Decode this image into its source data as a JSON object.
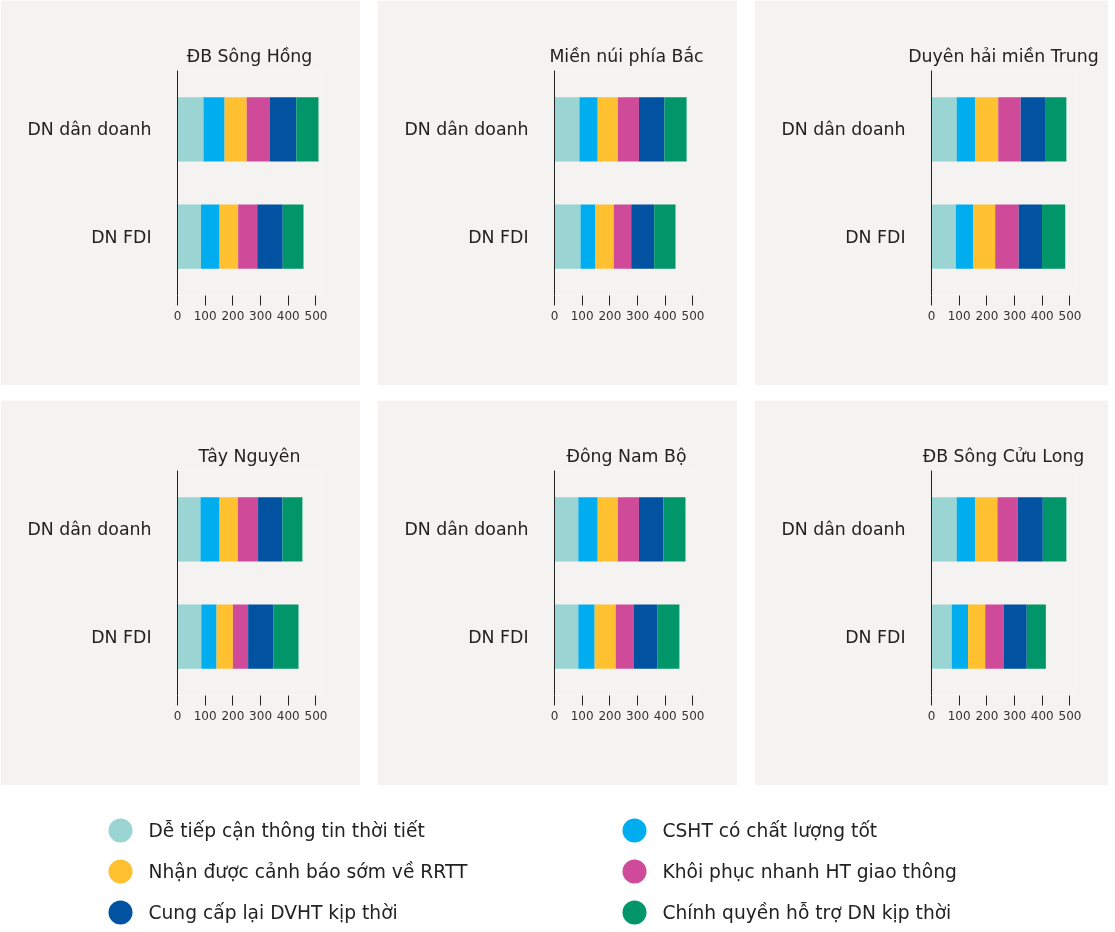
{
  "chart_data": [
    {
      "type": "bar",
      "orientation": "horizontal",
      "stacked": true,
      "title": "ĐB Sông Hồng",
      "categories": [
        "DN dân doanh",
        "DN FDI"
      ],
      "xlim": [
        0,
        520
      ],
      "xticks": [
        0,
        100,
        200,
        300,
        400,
        500
      ],
      "legend": "bottom",
      "series": [
        {
          "name": "Dễ tiếp cận thông tin thời tiết",
          "color": "#9ad5d4",
          "values": [
            94,
            85
          ]
        },
        {
          "name": "CSHT có chất lượng tốt",
          "color": "#00adef",
          "values": [
            76,
            67
          ]
        },
        {
          "name": "Nhận được cảnh báo sớm về RRTT",
          "color": "#ffc12f",
          "values": [
            80,
            67
          ]
        },
        {
          "name": "Khôi phục nhanh HT giao thông",
          "color": "#cf4b99",
          "values": [
            84,
            69
          ]
        },
        {
          "name": "Cung cấp lại DVHT kịp thời",
          "color": "#0152a1",
          "values": [
            95,
            92
          ]
        },
        {
          "name": "Chính quyền hỗ trợ DN kịp thời",
          "color": "#009669",
          "values": [
            80,
            75
          ]
        }
      ]
    },
    {
      "type": "bar",
      "orientation": "horizontal",
      "stacked": true,
      "title": "Miền núi phía Bắc",
      "categories": [
        "DN dân doanh",
        "DN FDI"
      ],
      "xlim": [
        0,
        520
      ],
      "xticks": [
        0,
        100,
        200,
        300,
        400,
        500
      ],
      "series": [
        {
          "color": "#9ad5d4",
          "values": [
            90,
            94
          ]
        },
        {
          "color": "#00adef",
          "values": [
            66,
            54
          ]
        },
        {
          "color": "#ffc12f",
          "values": [
            73,
            66
          ]
        },
        {
          "color": "#cf4b99",
          "values": [
            76,
            63
          ]
        },
        {
          "color": "#0152a1",
          "values": [
            92,
            83
          ]
        },
        {
          "color": "#009669",
          "values": [
            80,
            77
          ]
        }
      ]
    },
    {
      "type": "bar",
      "orientation": "horizontal",
      "stacked": true,
      "title": "Duyên hải miền Trung",
      "categories": [
        "DN dân doanh",
        "DN FDI"
      ],
      "xlim": [
        0,
        520
      ],
      "xticks": [
        0,
        100,
        200,
        300,
        400,
        500
      ],
      "series": [
        {
          "color": "#9ad5d4",
          "values": [
            91,
            88
          ]
        },
        {
          "color": "#00adef",
          "values": [
            66,
            62
          ]
        },
        {
          "color": "#ffc12f",
          "values": [
            84,
            80
          ]
        },
        {
          "color": "#cf4b99",
          "values": [
            81,
            85
          ]
        },
        {
          "color": "#0152a1",
          "values": [
            88,
            84
          ]
        },
        {
          "color": "#009669",
          "values": [
            77,
            84
          ]
        }
      ]
    },
    {
      "type": "bar",
      "orientation": "horizontal",
      "stacked": true,
      "title": "Tây Nguyên",
      "categories": [
        "DN dân doanh",
        "DN FDI"
      ],
      "xlim": [
        0,
        520
      ],
      "xticks": [
        0,
        100,
        200,
        300,
        400,
        500
      ],
      "series": [
        {
          "color": "#9ad5d4",
          "values": [
            83,
            86
          ]
        },
        {
          "color": "#00adef",
          "values": [
            69,
            55
          ]
        },
        {
          "color": "#ffc12f",
          "values": [
            66,
            59
          ]
        },
        {
          "color": "#cf4b99",
          "values": [
            73,
            55
          ]
        },
        {
          "color": "#0152a1",
          "values": [
            88,
            91
          ]
        },
        {
          "color": "#009669",
          "values": [
            72,
            91
          ]
        }
      ]
    },
    {
      "type": "bar",
      "orientation": "horizontal",
      "stacked": true,
      "title": "Đông Nam Bộ",
      "categories": [
        "DN dân doanh",
        "DN FDI"
      ],
      "xlim": [
        0,
        520
      ],
      "xticks": [
        0,
        100,
        200,
        300,
        400,
        500
      ],
      "series": [
        {
          "color": "#9ad5d4",
          "values": [
            86,
            86
          ]
        },
        {
          "color": "#00adef",
          "values": [
            70,
            59
          ]
        },
        {
          "color": "#ffc12f",
          "values": [
            73,
            76
          ]
        },
        {
          "color": "#cf4b99",
          "values": [
            76,
            66
          ]
        },
        {
          "color": "#0152a1",
          "values": [
            88,
            84
          ]
        },
        {
          "color": "#009669",
          "values": [
            80,
            80
          ]
        }
      ]
    },
    {
      "type": "bar",
      "orientation": "horizontal",
      "stacked": true,
      "title": "ĐB Sông Cửu Long",
      "categories": [
        "DN dân doanh",
        "DN FDI"
      ],
      "xlim": [
        0,
        520
      ],
      "xticks": [
        0,
        100,
        200,
        300,
        400,
        500
      ],
      "series": [
        {
          "color": "#9ad5d4",
          "values": [
            91,
            73
          ]
        },
        {
          "color": "#00adef",
          "values": [
            66,
            59
          ]
        },
        {
          "color": "#ffc12f",
          "values": [
            81,
            62
          ]
        },
        {
          "color": "#cf4b99",
          "values": [
            73,
            66
          ]
        },
        {
          "color": "#0152a1",
          "values": [
            91,
            84
          ]
        },
        {
          "color": "#009669",
          "values": [
            85,
            69
          ]
        }
      ]
    }
  ]
}
